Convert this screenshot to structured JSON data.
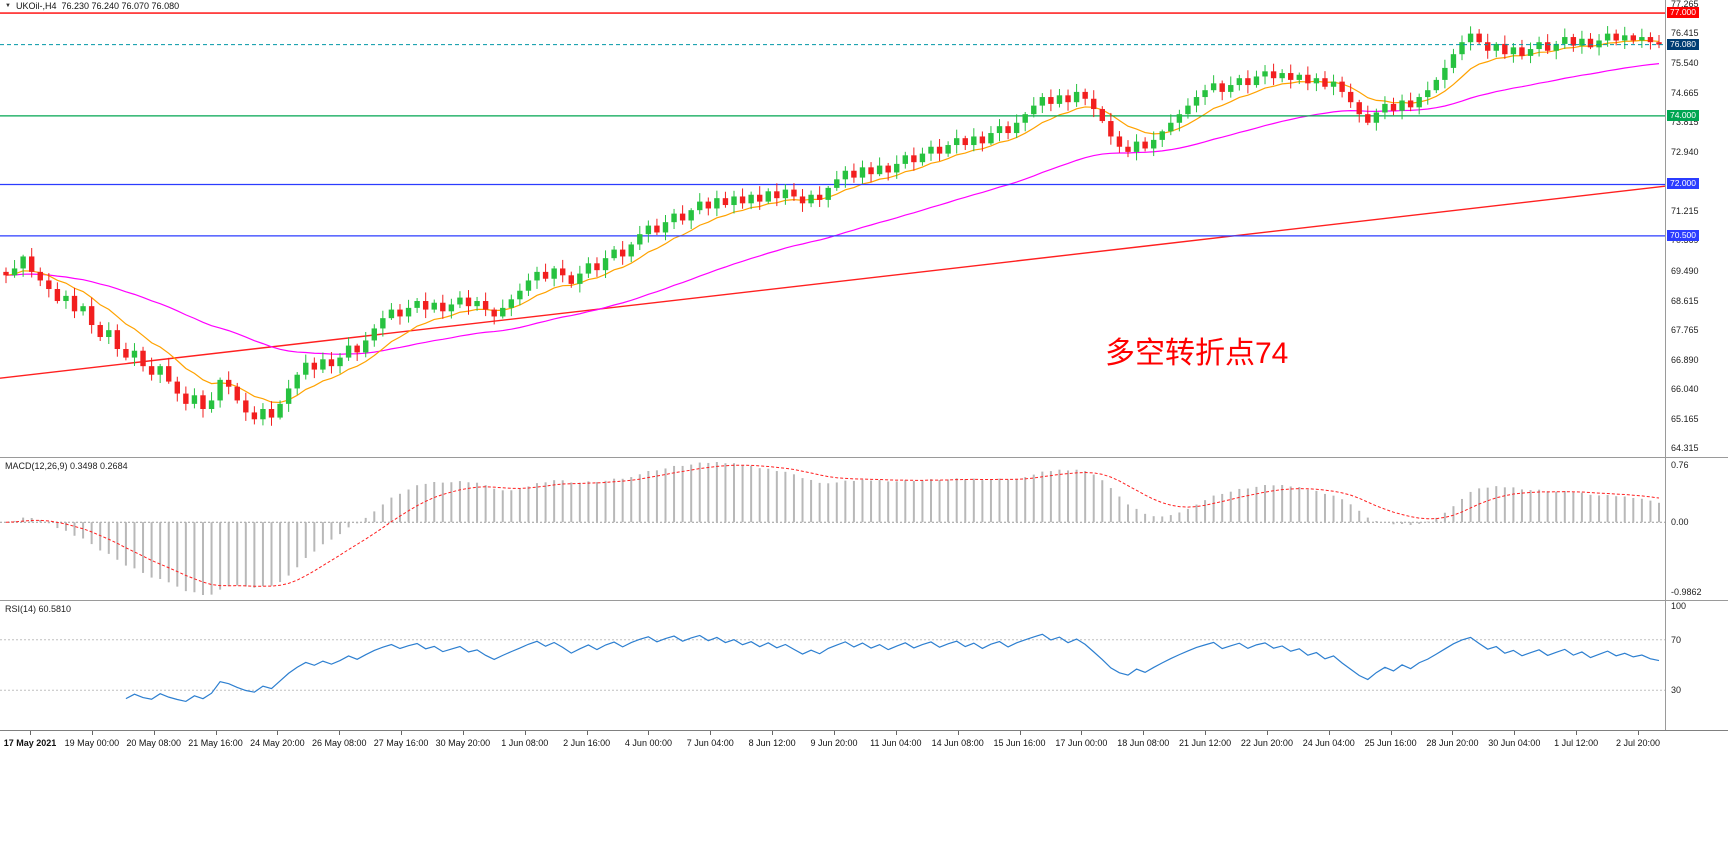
{
  "titlebar": {
    "icon": "▼",
    "symbol": "UKOil-,H4",
    "quotes": "76.230 76.240 76.070 76.080"
  },
  "annotation": {
    "text": "多空转折点74",
    "color": "#ff0000"
  },
  "price_axis": {
    "labels": [
      "77.265",
      "76.415",
      "75.540",
      "74.665",
      "73.815",
      "72.940",
      "71.215",
      "70.369",
      "69.490",
      "68.615",
      "67.765",
      "66.890",
      "66.040",
      "65.165",
      "64.315"
    ]
  },
  "levels": [
    {
      "label": "77.000",
      "price": 77.0,
      "color": "#ff0000"
    },
    {
      "label": "74.000",
      "price": 74.0,
      "color": "#00a651"
    },
    {
      "label": "72.000",
      "price": 72.0,
      "color": "#2b3cff"
    },
    {
      "label": "70.500",
      "price": 70.5,
      "color": "#2b3cff"
    }
  ],
  "current_price": {
    "label": "76.080",
    "value": 76.08,
    "line_color": "#0098a6",
    "badge_color": "#003d73"
  },
  "indicators": {
    "macd": {
      "label": "MACD(12,26,9) 0.3498 0.2684",
      "axis_max": "0.76",
      "axis_zero": "0.00",
      "axis_min": "-0.9862",
      "hist_color": "#b8b8b8",
      "signal_color": "#ff2020"
    },
    "rsi": {
      "label": "RSI(14) 60.5810",
      "axis": [
        "100",
        "70",
        "30"
      ],
      "levels": [
        70,
        30
      ],
      "line_color": "#2d7fd0",
      "level_color": "#c0c0c0"
    }
  },
  "time_axis": {
    "labels": [
      "17 May 2021",
      "19 May 00:00",
      "20 May 08:00",
      "21 May 16:00",
      "24 May 20:00",
      "26 May 08:00",
      "27 May 16:00",
      "30 May 20:00",
      "1 Jun 08:00",
      "2 Jun 16:00",
      "4 Jun 00:00",
      "7 Jun 04:00",
      "8 Jun 12:00",
      "9 Jun 20:00",
      "11 Jun 04:00",
      "14 Jun 08:00",
      "15 Jun 16:00",
      "17 Jun 00:00",
      "18 Jun 08:00",
      "21 Jun 12:00",
      "22 Jun 20:00",
      "24 Jun 04:00",
      "25 Jun 16:00",
      "28 Jun 20:00",
      "30 Jun 04:00",
      "1 Jul 12:00",
      "2 Jul 20:00"
    ]
  },
  "chart_data": {
    "type": "candlestick",
    "symbol": "UKOil",
    "timeframe": "H4",
    "title": "UKOil-,H4",
    "ohlc_display": {
      "open": "76.230",
      "high": "76.240",
      "low": "76.070",
      "close": "76.080"
    },
    "y_range": [
      64.05,
      77.06
    ],
    "open_first": 69.45,
    "up_color": "#27c240",
    "down_color": "#f21f1f",
    "closes": [
      69.35,
      69.55,
      69.9,
      69.45,
      69.2,
      68.95,
      68.6,
      68.75,
      68.3,
      68.45,
      67.9,
      67.55,
      67.75,
      67.2,
      66.95,
      67.15,
      66.7,
      66.45,
      66.7,
      66.25,
      65.9,
      65.6,
      65.85,
      65.45,
      65.7,
      66.3,
      66.1,
      65.7,
      65.35,
      65.15,
      65.45,
      65.2,
      65.6,
      66.05,
      66.45,
      66.8,
      66.6,
      66.9,
      66.7,
      66.95,
      67.3,
      67.1,
      67.45,
      67.8,
      68.1,
      68.35,
      68.15,
      68.4,
      68.6,
      68.35,
      68.55,
      68.3,
      68.5,
      68.7,
      68.45,
      68.6,
      68.35,
      68.15,
      68.4,
      68.65,
      68.9,
      69.2,
      69.45,
      69.25,
      69.55,
      69.35,
      69.1,
      69.4,
      69.7,
      69.5,
      69.85,
      70.1,
      69.9,
      70.25,
      70.55,
      70.8,
      70.6,
      70.9,
      71.15,
      70.95,
      71.25,
      71.5,
      71.3,
      71.6,
      71.4,
      71.65,
      71.45,
      71.7,
      71.5,
      71.8,
      71.6,
      71.85,
      71.65,
      71.45,
      71.7,
      71.55,
      71.9,
      72.15,
      72.4,
      72.2,
      72.5,
      72.3,
      72.55,
      72.35,
      72.6,
      72.85,
      72.65,
      72.9,
      73.1,
      72.9,
      73.15,
      73.35,
      73.15,
      73.4,
      73.2,
      73.5,
      73.7,
      73.5,
      73.8,
      74.05,
      74.3,
      74.55,
      74.35,
      74.6,
      74.4,
      74.7,
      74.5,
      74.2,
      73.85,
      73.4,
      73.1,
      72.95,
      73.25,
      73.05,
      73.3,
      73.55,
      73.8,
      74.05,
      74.3,
      74.55,
      74.75,
      74.95,
      74.7,
      74.9,
      75.1,
      74.9,
      75.15,
      75.3,
      75.1,
      75.25,
      75.05,
      75.2,
      74.95,
      75.1,
      74.85,
      75.0,
      74.7,
      74.4,
      74.05,
      73.8,
      74.1,
      74.35,
      74.15,
      74.45,
      74.25,
      74.55,
      74.75,
      75.05,
      75.4,
      75.8,
      76.15,
      76.4,
      76.15,
      75.9,
      76.1,
      75.8,
      76.0,
      75.75,
      75.95,
      76.15,
      75.9,
      76.1,
      76.3,
      76.05,
      76.25,
      76.0,
      76.2,
      76.4,
      76.2,
      76.35,
      76.2,
      76.3,
      76.15,
      76.08
    ],
    "moving_averages": [
      {
        "name": "fast",
        "color": "#ffa200",
        "period": 10
      },
      {
        "name": "medium",
        "color": "#ff00ff",
        "period": 45
      },
      {
        "name": "slow",
        "color": "#ff2020",
        "trend_start": 66.35,
        "trend_end": 71.95
      }
    ],
    "horizontal_levels": [
      77.0,
      76.08,
      74.0,
      72.0,
      70.5
    ],
    "indicators_displayed": {
      "macd": {
        "params": [
          12,
          26,
          9
        ],
        "main_value": 0.3498,
        "signal_value": 0.2684,
        "panel_max": 0.76,
        "panel_min": -0.9862
      },
      "rsi": {
        "period": 14,
        "value": 60.581,
        "scale": [
          0,
          100
        ],
        "marked_levels": [
          70,
          30
        ]
      }
    }
  }
}
